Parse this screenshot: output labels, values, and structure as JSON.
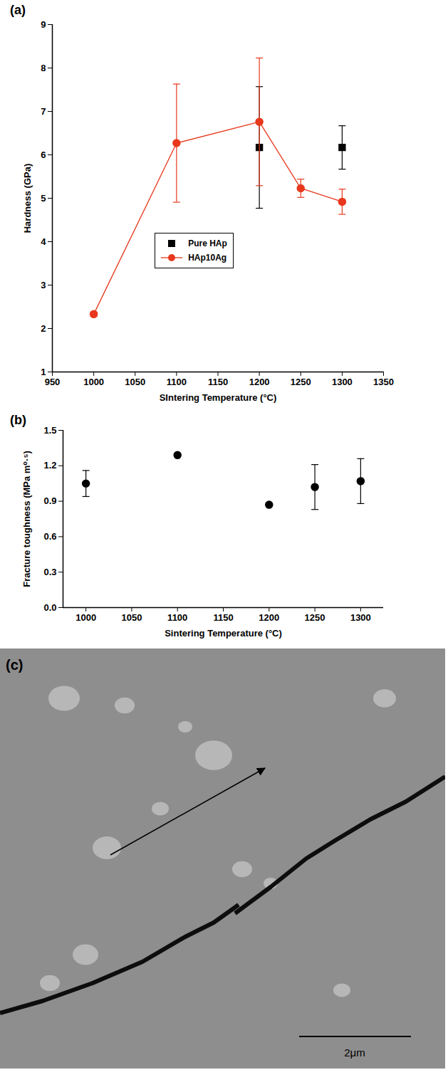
{
  "chart_data": [
    {
      "type": "line",
      "title": "(a)",
      "xlabel": "SIntering Temperature (°C)",
      "ylabel": "Hardness (GPa)",
      "xlim": [
        950,
        1350
      ],
      "xticks": [
        950,
        1000,
        1050,
        1100,
        1150,
        1200,
        1250,
        1300,
        1350
      ],
      "ylim": [
        1,
        9
      ],
      "yticks": [
        1,
        2,
        3,
        4,
        5,
        6,
        7,
        8,
        9
      ],
      "legend": "center",
      "series": [
        {
          "name": "Pure HAp",
          "color": "#000000",
          "marker": "square",
          "line_style": "none",
          "x": [
            1200,
            1300
          ],
          "values": [
            6.17,
            6.17
          ],
          "errors": [
            1.4,
            0.5
          ]
        },
        {
          "name": "HAp10Ag",
          "color": "#e8371c",
          "marker": "circle",
          "line_style": "solid",
          "x": [
            1000,
            1100,
            1200,
            1250,
            1300
          ],
          "values": [
            2.33,
            6.27,
            6.76,
            5.23,
            4.92
          ],
          "errors": [
            0.05,
            1.36,
            1.47,
            0.21,
            0.29
          ]
        }
      ]
    },
    {
      "type": "scatter",
      "title": "(b)",
      "xlabel": "Sintering Temperature (°C)",
      "ylabel": "Fracture toughness (MPa m⁰·⁵)",
      "xlim": [
        975,
        1325
      ],
      "xticks": [
        1000,
        1050,
        1100,
        1150,
        1200,
        1250,
        1300
      ],
      "ylim": [
        0,
        1.5
      ],
      "yticks": [
        {
          "value": 0,
          "label": "0.0"
        },
        0.3,
        0.6,
        0.9,
        1.2,
        1.5
      ],
      "color": "#000000",
      "marker": "circle",
      "x": [
        1000,
        1100,
        1200,
        1250,
        1300
      ],
      "values": [
        1.05,
        1.29,
        0.87,
        1.02,
        1.07
      ],
      "errors": [
        0.11,
        null,
        null,
        0.19,
        0.19
      ]
    }
  ],
  "micrograph": {
    "label": "(c)",
    "scale_bar": "2μm"
  }
}
